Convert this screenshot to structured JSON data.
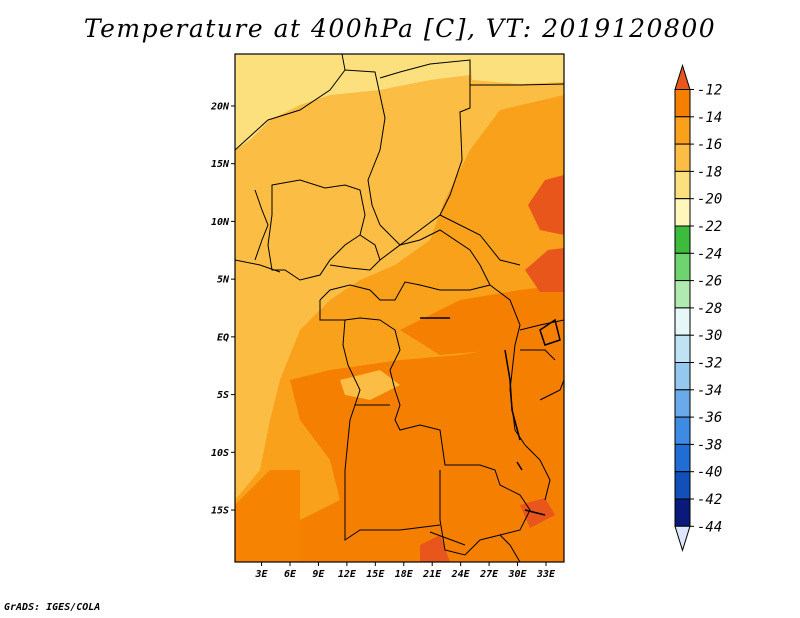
{
  "title": "Temperature at 400hPa [C], VT: 2019120800",
  "credit": "GrADS: IGES/COLA",
  "map": {
    "lat_labels": [
      "20N",
      "15N",
      "10N",
      "5N",
      "EQ",
      "5S",
      "10S",
      "15S"
    ],
    "lon_labels": [
      "3E",
      "6E",
      "9E",
      "12E",
      "15E",
      "18E",
      "21E",
      "24E",
      "27E",
      "30E",
      "33E"
    ],
    "lat_range": [
      -19.5,
      24.5
    ],
    "lon_range": [
      0.2,
      34.9
    ]
  },
  "colorbar": {
    "levels": [
      "-12",
      "-14",
      "-16",
      "-18",
      "-20",
      "-22",
      "-24",
      "-26",
      "-28",
      "-30",
      "-32",
      "-34",
      "-36",
      "-38",
      "-40",
      "-42",
      "-44"
    ],
    "colors": [
      "#e8561c",
      "#f57f00",
      "#f9a11b",
      "#fbbd43",
      "#fde07e",
      "#fef6ba",
      "#3cbb3c",
      "#6fd36f",
      "#b0eab0",
      "#e6f7f7",
      "#bfe3f3",
      "#94c8ef",
      "#6aaaea",
      "#3d8be3",
      "#1f6ed6",
      "#1050b8",
      "#0a1a7a",
      "#dfe6ff"
    ]
  }
}
